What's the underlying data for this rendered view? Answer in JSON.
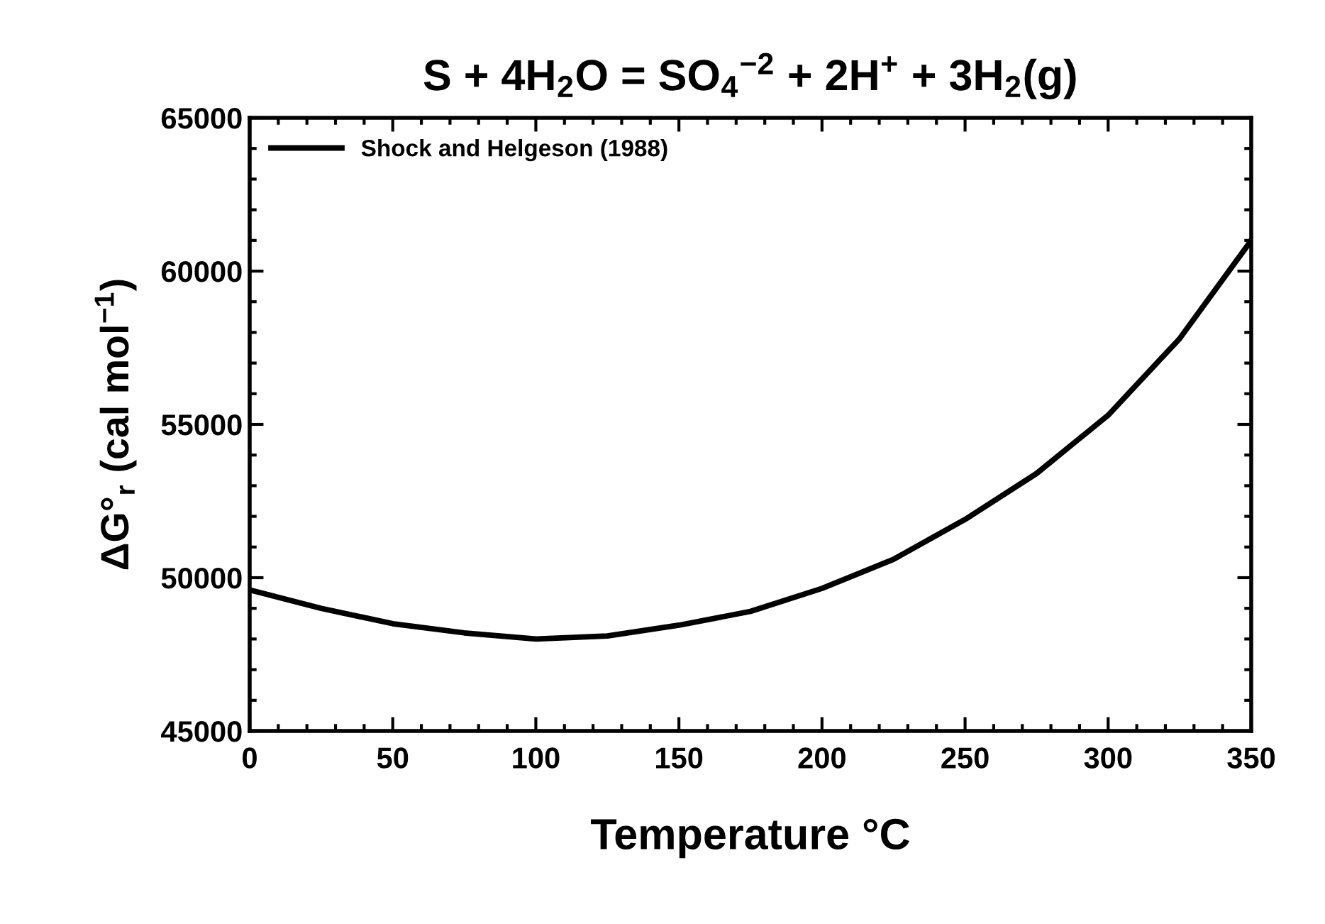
{
  "chart_data": {
    "type": "line",
    "title": "S + 4H$_{2}$O = SO$_{4}$$^{−2}$ + 2H$^{+}$ + 3H$_{2}$(g)",
    "xlabel": "Temperature °C",
    "ylabel": "ΔG°$_{r}$ (cal mol$^{−1}$)",
    "x": [
      0,
      25,
      50,
      75,
      100,
      125,
      150,
      175,
      200,
      225,
      250,
      275,
      300,
      325,
      350
    ],
    "series": [
      {
        "name": "Shock and Helgeson (1988)",
        "color": "#000000",
        "values": [
          49600,
          49000,
          48500,
          48200,
          48000,
          48100,
          48450,
          48900,
          49650,
          50600,
          51900,
          53400,
          55300,
          57800,
          61000
        ]
      }
    ],
    "xlim": [
      0,
      350
    ],
    "xticks": [
      0,
      50,
      100,
      150,
      200,
      250,
      300,
      350
    ],
    "ylim": [
      45000,
      65000
    ],
    "yticks": [
      45000,
      50000,
      55000,
      60000,
      65000
    ],
    "grid": false,
    "legend": "top left",
    "marker": "none",
    "line_style": "solid"
  }
}
